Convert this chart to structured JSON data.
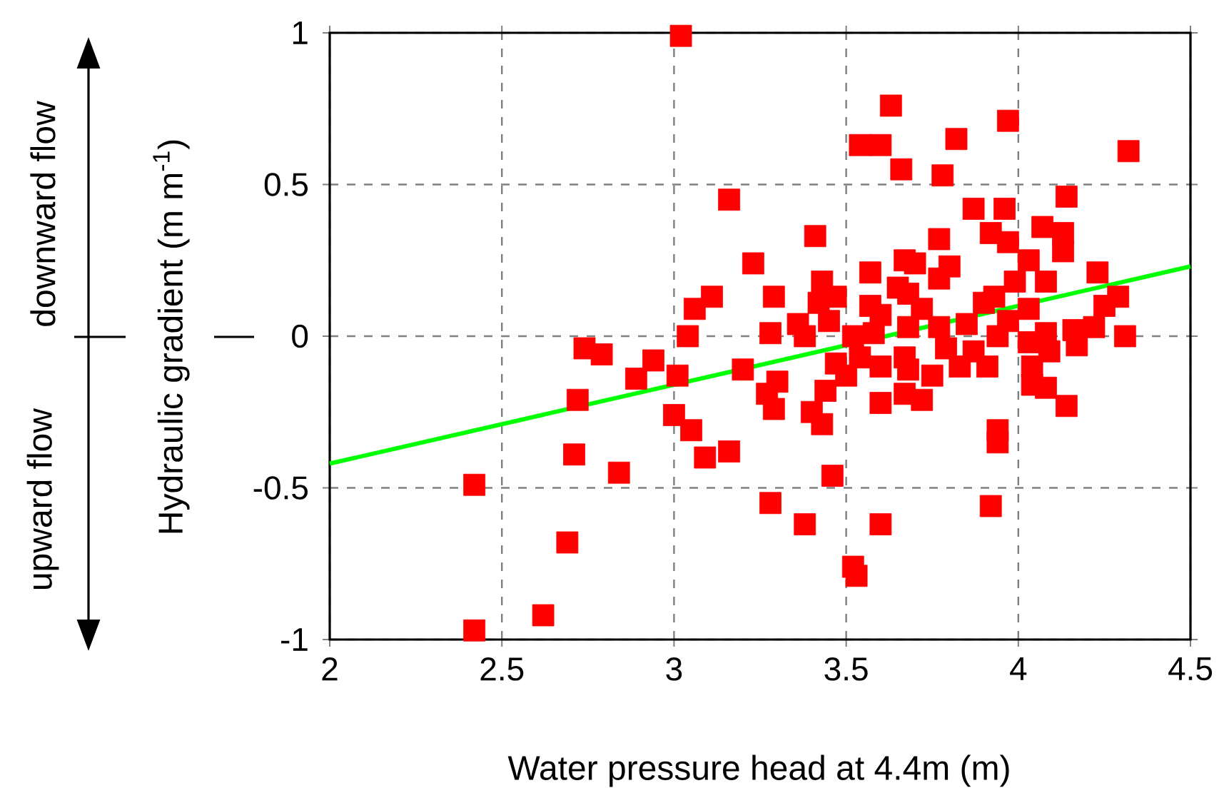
{
  "chart_data": {
    "type": "scatter",
    "xlabel": "Water pressure head at 4.4m (m)",
    "ylabel": "Hydraulic gradient (m m$^{-1}$)",
    "annotations": [
      "downward flow",
      "upward flow"
    ],
    "xlim": [
      2,
      4.5
    ],
    "ylim": [
      -1,
      1
    ],
    "xticks": [
      2,
      2.5,
      3,
      3.5,
      4,
      4.5
    ],
    "yticks": [
      -1,
      -0.5,
      0,
      0.5,
      1
    ],
    "grid": true,
    "series": [
      {
        "color": "#ff0000",
        "marker": "square",
        "x": [
          2.42,
          2.42,
          2.62,
          2.69,
          2.71,
          2.72,
          2.74,
          2.79,
          2.84,
          2.89,
          2.94,
          3.0,
          3.01,
          3.02,
          3.04,
          3.05,
          3.06,
          3.09,
          3.11,
          3.16,
          3.16,
          3.2,
          3.23,
          3.27,
          3.28,
          3.29,
          3.29,
          3.28,
          3.3,
          3.36,
          3.38,
          3.38,
          3.4,
          3.41,
          3.42,
          3.43,
          3.43,
          3.44,
          3.45,
          3.46,
          3.47,
          3.47,
          3.5,
          3.52,
          3.52,
          3.53,
          3.54,
          3.54,
          3.57,
          3.57,
          3.58,
          3.6,
          3.6,
          3.6,
          3.6,
          3.6,
          3.63,
          3.65,
          3.66,
          3.67,
          3.67,
          3.67,
          3.68,
          3.68,
          3.68,
          3.7,
          3.72,
          3.72,
          3.75,
          3.77,
          3.77,
          3.77,
          3.78,
          3.79,
          3.8,
          3.82,
          3.83,
          3.85,
          3.87,
          3.87,
          3.9,
          3.91,
          3.92,
          3.92,
          3.93,
          3.94,
          3.94,
          3.94,
          3.96,
          3.97,
          3.97,
          3.97,
          3.99,
          4.03,
          4.03,
          4.03,
          4.04,
          4.04,
          4.07,
          4.08,
          4.08,
          4.08,
          4.09,
          4.13,
          4.13,
          4.14,
          4.14,
          4.16,
          4.17,
          4.22,
          4.23,
          4.25,
          4.29,
          4.31,
          4.32
        ],
        "values": [
          -0.49,
          -0.97,
          -0.92,
          -0.68,
          -0.39,
          -0.21,
          -0.04,
          -0.06,
          -0.45,
          -0.14,
          -0.08,
          -0.26,
          -0.13,
          0.99,
          0.0,
          -0.31,
          0.09,
          -0.4,
          0.13,
          0.45,
          -0.38,
          -0.11,
          0.24,
          -0.19,
          -0.55,
          0.13,
          -0.24,
          0.01,
          -0.15,
          0.04,
          0.0,
          -0.62,
          -0.25,
          0.33,
          0.11,
          0.18,
          -0.29,
          -0.18,
          0.05,
          -0.46,
          -0.09,
          0.13,
          -0.13,
          0.0,
          -0.76,
          -0.79,
          0.63,
          -0.07,
          0.21,
          0.1,
          0.01,
          0.63,
          0.07,
          -0.1,
          -0.22,
          -0.62,
          0.76,
          0.16,
          0.55,
          0.25,
          -0.07,
          -0.19,
          0.14,
          0.03,
          -0.11,
          0.24,
          0.09,
          -0.21,
          -0.13,
          0.32,
          0.19,
          0.03,
          0.53,
          -0.04,
          0.23,
          0.65,
          -0.1,
          0.04,
          0.42,
          -0.05,
          0.11,
          -0.1,
          0.34,
          -0.56,
          0.13,
          0.0,
          -0.31,
          -0.35,
          0.42,
          0.71,
          0.31,
          0.05,
          0.18,
          0.25,
          0.09,
          -0.02,
          -0.16,
          -0.1,
          0.36,
          0.18,
          0.01,
          -0.17,
          -0.05,
          0.34,
          0.28,
          0.46,
          -0.23,
          0.02,
          -0.03,
          0.03,
          0.21,
          0.1,
          0.13,
          0.0,
          0.61
        ]
      },
      {
        "type": "line",
        "color": "#00ff00",
        "marker": "none",
        "x": [
          2,
          4.5
        ],
        "values": [
          -0.42,
          0.23
        ]
      }
    ]
  }
}
